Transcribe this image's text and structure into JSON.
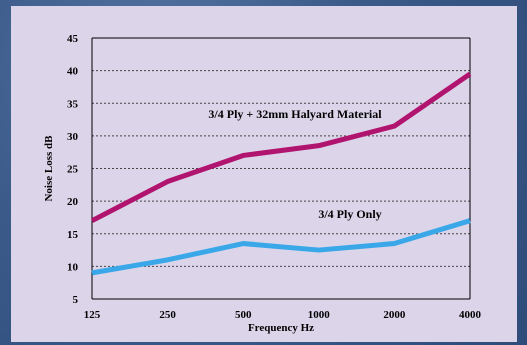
{
  "colors": {
    "background": "#3f5f8f",
    "panel": "#dcd5ea",
    "series_halyard": "#b0146e",
    "series_ply": "#3aa8e8",
    "gridline": "#444444"
  },
  "chart_data": {
    "type": "line",
    "title": "",
    "xlabel": "Frequency Hz",
    "ylabel": "Noise Loss dB",
    "categories": [
      "125",
      "250",
      "500",
      "1000",
      "2000",
      "4000"
    ],
    "ylim": [
      5,
      45
    ],
    "yticks": [
      5,
      10,
      15,
      20,
      25,
      30,
      35,
      40,
      45
    ],
    "grid": "horizontal dotted",
    "series": [
      {
        "name": "3/4 Ply + 32mm Halyard Material",
        "color": "#b0146e",
        "values": [
          17,
          23,
          27,
          28.5,
          31.5,
          39.5
        ]
      },
      {
        "name": "3/4 Ply Only",
        "color": "#3aa8e8",
        "values": [
          9,
          11,
          13.5,
          12.5,
          13.5,
          17
        ]
      }
    ]
  }
}
